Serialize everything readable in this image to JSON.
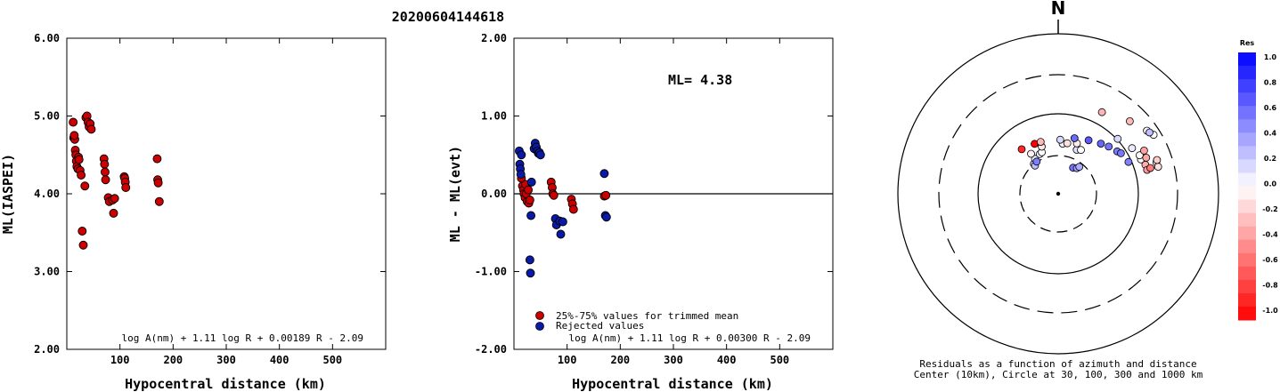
{
  "event_id": "20200604144618",
  "colors": {
    "trimmed": "#cc0000",
    "rejected": "#0a1aa8",
    "axis": "#000000"
  },
  "panel1": {
    "ylabel": "ML(IASPEI)",
    "xlabel": "Hypocentral distance (km)",
    "formula": "log A(nm) + 1.11 log R + 0.00189 R - 2.09",
    "yticks": [
      "6.00",
      "5.00",
      "4.00",
      "3.00",
      "2.00"
    ],
    "xticks": [
      "100",
      "200",
      "300",
      "400",
      "500"
    ]
  },
  "panel2": {
    "ylabel": "ML - ML(evt)",
    "xlabel": "Hypocentral distance (km)",
    "ml_label": "ML= 4.38",
    "formula": "log A(nm) + 1.11 log R + 0.00300 R - 2.09",
    "legend_trimmed": "25%-75% values for trimmed mean",
    "legend_rejected": "Rejected values",
    "yticks": [
      "2.00",
      "1.00",
      "0.00",
      "-1.00",
      "-2.00"
    ],
    "xticks": [
      "100",
      "200",
      "300",
      "400",
      "500"
    ]
  },
  "panel3": {
    "north": "N",
    "caption_line1": "Residuals as a function of azimuth and distance",
    "caption_line2": "Center (10km), Circle at 30, 100, 300 and 1000 km",
    "colorbar_title": "Res",
    "colorbar_ticks": [
      "1.0",
      "0.8",
      "0.6",
      "0.4",
      "0.2",
      "0.0",
      "-0.2",
      "-0.4",
      "-0.6",
      "-0.8",
      "-1.0"
    ]
  },
  "chart_data": [
    {
      "type": "scatter",
      "title": "20200604144618",
      "xlabel": "Hypocentral distance (km)",
      "ylabel": "ML(IASPEI)",
      "xlim": [
        0,
        600
      ],
      "ylim": [
        2.0,
        6.0
      ],
      "annotation": "log A(nm) + 1.11 log R + 0.00189 R - 2.09",
      "series": [
        {
          "x": [
            12,
            13,
            15,
            14,
            16,
            17,
            18,
            19,
            21,
            22,
            23,
            25,
            27,
            29,
            31,
            34,
            36,
            38,
            40,
            42,
            44,
            46,
            70,
            71,
            72,
            73,
            78,
            80,
            86,
            88,
            90,
            108,
            109,
            110,
            111,
            170,
            171,
            172,
            174
          ],
          "y": [
            4.92,
            4.72,
            4.7,
            4.75,
            4.56,
            4.5,
            4.42,
            4.35,
            4.32,
            4.47,
            4.44,
            4.3,
            4.24,
            3.52,
            3.34,
            4.1,
            4.98,
            5.0,
            4.92,
            4.86,
            4.9,
            4.83,
            4.45,
            4.38,
            4.28,
            4.18,
            3.95,
            3.9,
            3.92,
            3.75,
            3.94,
            4.22,
            4.2,
            4.15,
            4.08,
            4.45,
            4.18,
            4.14,
            3.9
          ]
        }
      ]
    },
    {
      "type": "scatter",
      "xlabel": "Hypocentral distance (km)",
      "ylabel": "ML - ML(evt)",
      "xlim": [
        0,
        600
      ],
      "ylim": [
        -2.0,
        2.0
      ],
      "annotation": "ML= 4.38",
      "series": [
        {
          "name": "25%-75% values for trimmed mean",
          "x": [
            14,
            16,
            18,
            19,
            21,
            22,
            23,
            25,
            27,
            28,
            30,
            70,
            72,
            73,
            75,
            108,
            110,
            112,
            170,
            173
          ],
          "y": [
            0.2,
            0.1,
            0.05,
            0.0,
            -0.05,
            0.12,
            0.0,
            -0.1,
            0.05,
            -0.12,
            -0.08,
            0.15,
            0.08,
            0.0,
            -0.02,
            -0.07,
            -0.13,
            -0.2,
            -0.03,
            -0.02
          ]
        },
        {
          "name": "Rejected values",
          "x": [
            10,
            11,
            12,
            13,
            14,
            30,
            31,
            32,
            33,
            38,
            40,
            42,
            44,
            46,
            48,
            50,
            78,
            80,
            86,
            88,
            92,
            170,
            172,
            174
          ],
          "y": [
            0.55,
            0.38,
            0.32,
            0.25,
            0.5,
            -0.85,
            -1.02,
            -0.28,
            0.15,
            0.58,
            0.65,
            0.6,
            0.55,
            0.52,
            0.53,
            0.5,
            -0.32,
            -0.4,
            -0.35,
            -0.52,
            -0.36,
            0.26,
            -0.28,
            -0.3
          ]
        }
      ]
    }
  ]
}
